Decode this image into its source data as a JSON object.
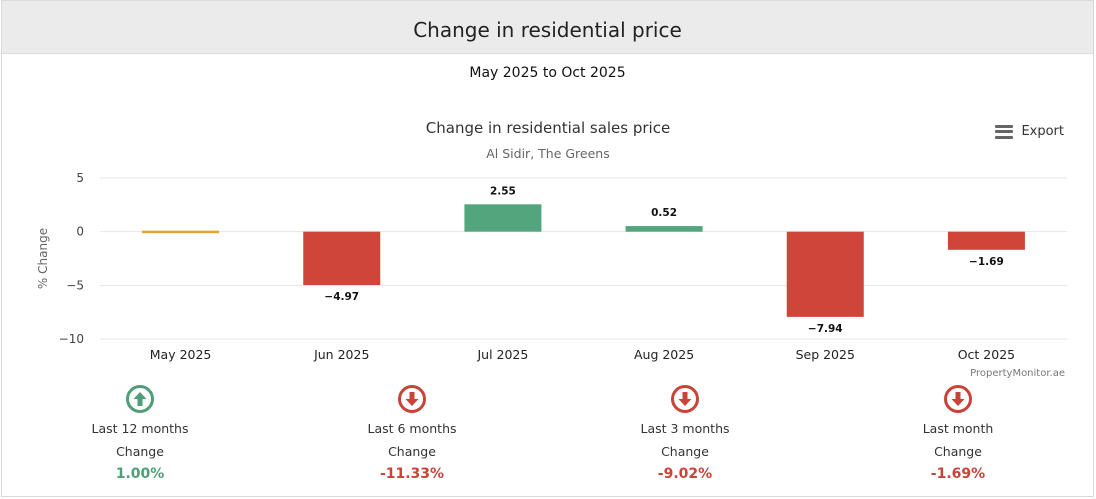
{
  "header": {
    "title": "Change in residential price"
  },
  "period": "May 2025 to Oct 2025",
  "export_label": "Export",
  "colors": {
    "positive": "#52a57c",
    "negative": "#cf4539",
    "neutral": "#e0a52b",
    "positive_icon": "#4e9e77",
    "negative_icon": "#c84338"
  },
  "chart_data": {
    "type": "bar",
    "title": "Change in residential sales price",
    "subtitle": "Al Sidir, The Greens",
    "ylabel": "% Change",
    "xlabel": "",
    "credit": "PropertyMonitor.ae",
    "categories": [
      "May 2025",
      "Jun 2025",
      "Jul 2025",
      "Aug 2025",
      "Sep 2025",
      "Oct 2025"
    ],
    "values": [
      0,
      -4.97,
      2.55,
      0.52,
      -7.94,
      -1.69
    ],
    "data_labels": [
      "",
      "−4.97",
      "2.55",
      "0.52",
      "−7.94",
      "−1.69"
    ],
    "yticks": [
      5,
      0,
      -5,
      -10
    ],
    "ytick_labels": [
      "5",
      "0",
      "−5",
      "−10"
    ],
    "ylim": [
      -10,
      5
    ],
    "grid": true
  },
  "stats": [
    {
      "period": "Last 12 months",
      "label": "Change",
      "value": "1.00%",
      "direction": "up"
    },
    {
      "period": "Last 6 months",
      "label": "Change",
      "value": "-11.33%",
      "direction": "down"
    },
    {
      "period": "Last 3 months",
      "label": "Change",
      "value": "-9.02%",
      "direction": "down"
    },
    {
      "period": "Last month",
      "label": "Change",
      "value": "-1.69%",
      "direction": "down"
    }
  ]
}
